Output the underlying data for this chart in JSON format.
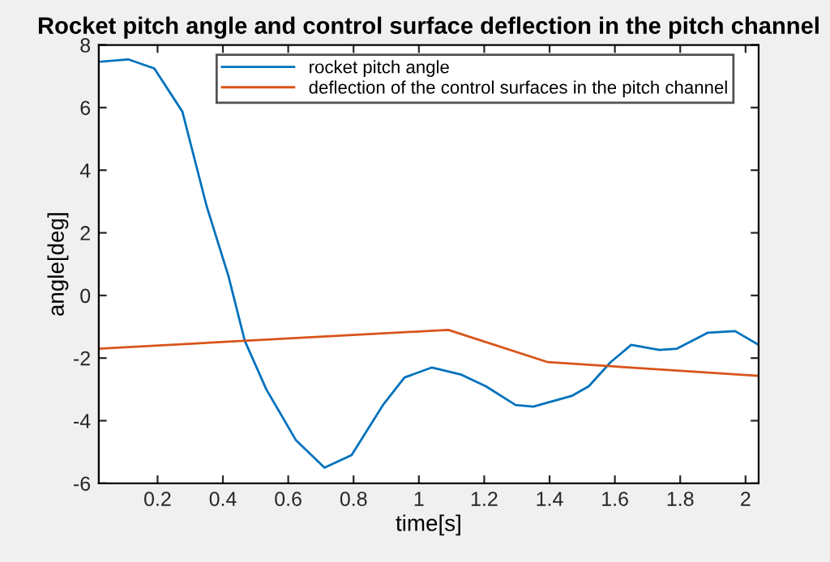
{
  "chart_data": {
    "type": "line",
    "title": "Rocket pitch angle and control surface deflection in the pitch channel",
    "xlabel": "time[s]",
    "ylabel": "angle[deg]",
    "series": [
      {
        "name": "rocket pitch angle",
        "color": "#0072bd",
        "x": [
          0.02,
          0.11,
          0.19,
          0.276,
          0.35,
          0.417,
          0.467,
          0.533,
          0.624,
          0.711,
          0.794,
          0.89,
          0.956,
          1.04,
          1.13,
          1.205,
          1.296,
          1.35,
          1.47,
          1.52,
          1.587,
          1.65,
          1.736,
          1.79,
          1.885,
          1.968,
          2.04
        ],
        "values": [
          7.46,
          7.54,
          7.25,
          5.87,
          2.86,
          0.62,
          -1.45,
          -3.0,
          -4.63,
          -5.5,
          -5.1,
          -3.5,
          -2.62,
          -2.3,
          -2.53,
          -2.9,
          -3.5,
          -3.55,
          -3.2,
          -2.9,
          -2.13,
          -1.58,
          -1.74,
          -1.7,
          -1.19,
          -1.14,
          -1.58
        ]
      },
      {
        "name": "deflection of the control surfaces in the pitch channel",
        "color": "#d95319",
        "x": [
          0.02,
          1.09,
          1.395,
          2.04
        ],
        "values": [
          -1.7,
          -1.1,
          -2.13,
          -2.57
        ]
      }
    ],
    "xlim": [
      0.02,
      2.04
    ],
    "ylim": [
      -6,
      8
    ],
    "xticks": [
      0.2,
      0.4,
      0.6,
      0.8,
      1,
      1.2,
      1.4,
      1.6,
      1.8,
      2
    ],
    "yticks": [
      -6,
      -4,
      -2,
      0,
      2,
      4,
      6,
      8
    ],
    "grid": false,
    "legend": "top right"
  }
}
